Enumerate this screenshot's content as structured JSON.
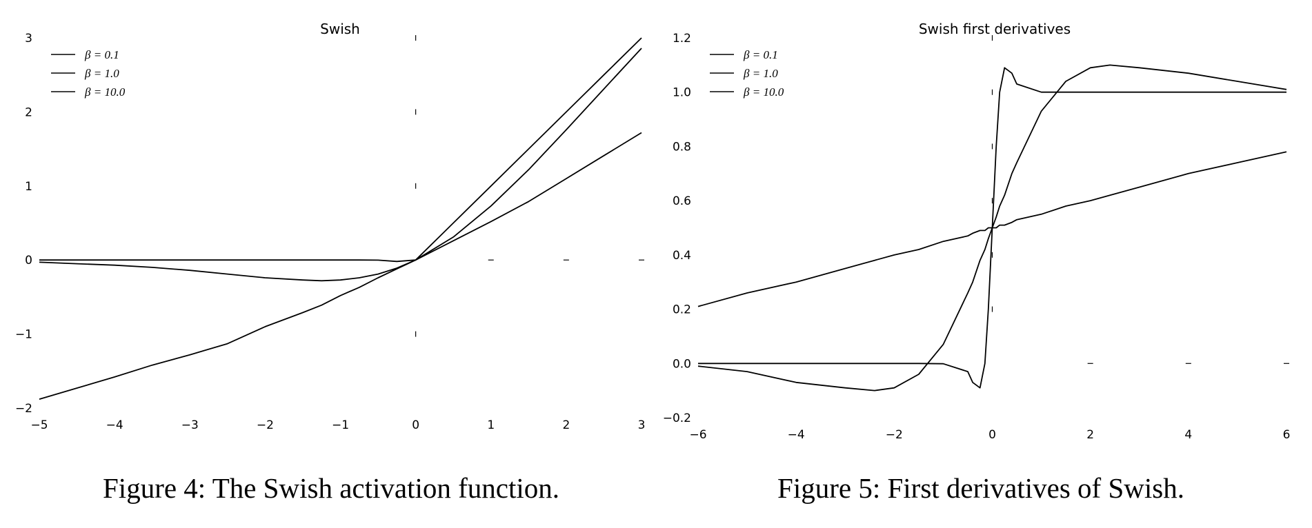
{
  "chart_data": [
    {
      "type": "line",
      "title": "Swish",
      "caption": "Figure 4: The Swish activation function.",
      "xlim": [
        -5,
        3
      ],
      "ylim": [
        -2,
        3
      ],
      "x_ticks": [
        "−5",
        "−4",
        "−3",
        "−2",
        "−1",
        "0",
        "1",
        "2",
        "3"
      ],
      "x_tick_values": [
        -5,
        -4,
        -3,
        -2,
        -1,
        0,
        1,
        2,
        3
      ],
      "y_ticks": [
        "−2",
        "−1",
        "0",
        "1",
        "2",
        "3"
      ],
      "y_tick_values": [
        -2,
        -1,
        0,
        1,
        2,
        3
      ],
      "grid": false,
      "legend": "top-left",
      "x": [
        -5,
        -4.5,
        -4,
        -3.5,
        -3,
        -2.5,
        -2,
        -1.5,
        -1.25,
        -1,
        -0.75,
        -0.5,
        -0.25,
        0,
        0.5,
        1,
        1.5,
        2,
        2.5,
        3
      ],
      "series": [
        {
          "name": "β = 0.1",
          "values": [
            -1.88,
            -1.73,
            -1.58,
            -1.42,
            -1.28,
            -1.13,
            -0.9,
            -0.71,
            -0.61,
            -0.48,
            -0.37,
            -0.24,
            -0.12,
            0.0,
            0.26,
            0.52,
            0.79,
            1.1,
            1.41,
            1.72
          ]
        },
        {
          "name": "β = 1.0",
          "values": [
            -0.03,
            -0.05,
            -0.07,
            -0.1,
            -0.14,
            -0.19,
            -0.24,
            -0.27,
            -0.28,
            -0.27,
            -0.24,
            -0.19,
            -0.11,
            0.0,
            0.31,
            0.73,
            1.22,
            1.76,
            2.31,
            2.86
          ]
        },
        {
          "name": "β = 10.0",
          "values": [
            0.0,
            0.0,
            0.0,
            0.0,
            0.0,
            0.0,
            0.0,
            0.0,
            0.0,
            0.0,
            0.0,
            -0.002,
            -0.02,
            0.0,
            0.5,
            1.0,
            1.5,
            2.0,
            2.5,
            3.0
          ]
        }
      ]
    },
    {
      "type": "line",
      "title": "Swish first derivatives",
      "caption": "Figure 5: First derivatives of Swish.",
      "xlim": [
        -6,
        6
      ],
      "ylim": [
        -0.2,
        1.2
      ],
      "x_ticks": [
        "−6",
        "−4",
        "−2",
        "0",
        "2",
        "4",
        "6"
      ],
      "x_tick_values": [
        -6,
        -4,
        -2,
        0,
        2,
        4,
        6
      ],
      "y_ticks": [
        "−0.2",
        "0.0",
        "0.2",
        "0.4",
        "0.6",
        "0.8",
        "1.0",
        "1.2"
      ],
      "y_tick_values": [
        -0.2,
        0.0,
        0.2,
        0.4,
        0.6,
        0.8,
        1.0,
        1.2
      ],
      "grid": false,
      "legend": "top-left",
      "x": [
        -6,
        -5,
        -4,
        -3,
        -2.4,
        -2,
        -1.5,
        -1,
        -0.5,
        -0.4,
        -0.25,
        -0.15,
        -0.08,
        0,
        0.08,
        0.15,
        0.25,
        0.4,
        0.5,
        1,
        1.5,
        2,
        2.4,
        3,
        4,
        5,
        6
      ],
      "series": [
        {
          "name": "β = 0.1",
          "values": [
            0.21,
            0.26,
            0.3,
            0.35,
            0.38,
            0.4,
            0.42,
            0.45,
            0.47,
            0.48,
            0.49,
            0.49,
            0.5,
            0.5,
            0.5,
            0.51,
            0.51,
            0.52,
            0.53,
            0.55,
            0.58,
            0.6,
            0.62,
            0.65,
            0.7,
            0.74,
            0.78
          ]
        },
        {
          "name": "β = 1.0",
          "values": [
            -0.01,
            -0.03,
            -0.07,
            -0.09,
            -0.1,
            -0.09,
            -0.04,
            0.07,
            0.26,
            0.3,
            0.38,
            0.42,
            0.46,
            0.5,
            0.54,
            0.58,
            0.62,
            0.7,
            0.74,
            0.93,
            1.04,
            1.09,
            1.1,
            1.09,
            1.07,
            1.04,
            1.01
          ]
        },
        {
          "name": "β = 10.0",
          "values": [
            0.0,
            0.0,
            0.0,
            0.0,
            0.0,
            0.0,
            0.0,
            -0.001,
            -0.03,
            -0.07,
            -0.09,
            0.0,
            0.2,
            0.5,
            0.8,
            1.0,
            1.09,
            1.07,
            1.03,
            1.0,
            1.0,
            1.0,
            1.0,
            1.0,
            1.0,
            1.0,
            1.0
          ]
        }
      ]
    }
  ]
}
